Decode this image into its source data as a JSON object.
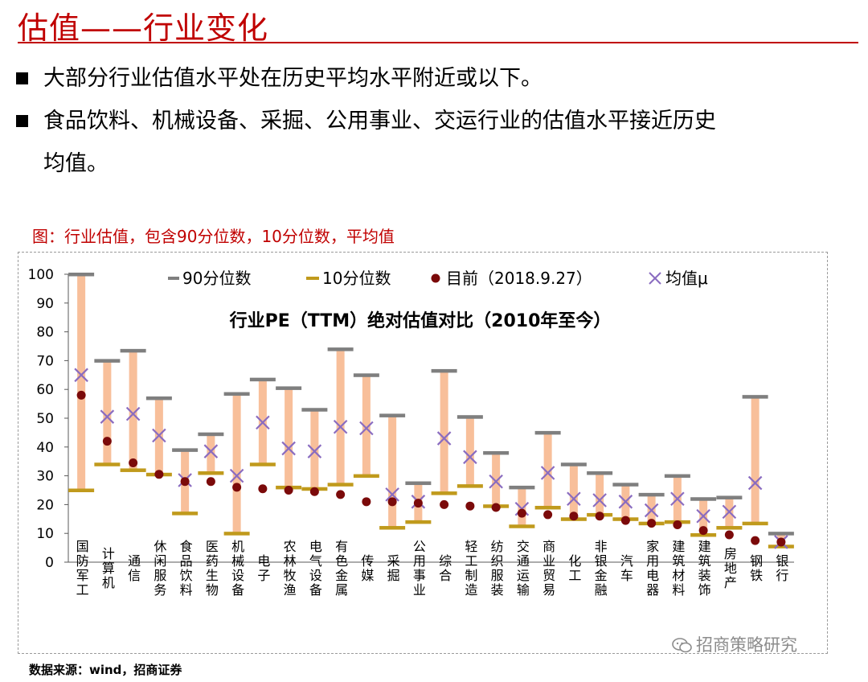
{
  "page": {
    "title": "估值——行业变化",
    "bullets": [
      "大部分行业估值水平处在历史平均水平附近或以下。",
      "食品饮料、机械设备、采掘、公用事业、交运行业的估值水平接近历史",
      "均值。"
    ],
    "figure_caption": "图：行业估值，包含90分位数，10分位数，平均值",
    "source": "数据来源：wind，招商证券",
    "watermark": "招商策略研究"
  },
  "colors": {
    "accent_red": "#c00000",
    "range_bar": "#f8bf9a",
    "p90_marker": "#7f7f7f",
    "p10_marker": "#c09a1c",
    "current_dot": "#7b0a0a",
    "mean_marker": "#8a6cc0"
  },
  "chart_data": {
    "type": "range",
    "title": "行业PE（TTM）绝对估值对比（2010年至今）",
    "ylim": [
      0,
      100
    ],
    "yticks": [
      0,
      10,
      20,
      30,
      40,
      50,
      60,
      70,
      80,
      90,
      100
    ],
    "legend_position": "top",
    "legend": {
      "p90": "90分位数",
      "p10": "10分位数",
      "current": "目前（2018.9.27）",
      "mean": "均值μ"
    },
    "categories": [
      "国防军工",
      "计算机",
      "通信",
      "休闲服务",
      "食品饮料",
      "医药生物",
      "机械设备",
      "电子",
      "农林牧渔",
      "电气设备",
      "有色金属",
      "传媒",
      "采掘",
      "公用事业",
      "综合",
      "轻工制造",
      "纺织服装",
      "交通运输",
      "商业贸易",
      "化工",
      "非银金融",
      "汽车",
      "家用电器",
      "建筑材料",
      "建筑装饰",
      "房地产",
      "钢铁",
      "银行"
    ],
    "series": [
      {
        "name": "90分位数",
        "values": [
          102,
          70,
          73.5,
          57,
          39,
          44.5,
          58.5,
          63.5,
          60.5,
          53,
          74,
          65,
          51,
          27.5,
          66.5,
          50.5,
          38,
          26,
          45,
          34,
          31,
          27,
          23.5,
          30,
          22,
          22.5,
          57.5,
          10
        ]
      },
      {
        "name": "10分位数",
        "values": [
          25,
          34,
          32,
          30.5,
          17,
          31,
          10,
          34,
          26,
          25.5,
          27,
          30,
          12,
          14,
          24,
          26.5,
          19.5,
          12.5,
          19,
          15,
          16.5,
          15,
          13.5,
          14,
          9.5,
          12,
          13.5,
          5.5
        ]
      },
      {
        "name": "目前（2018.9.27）",
        "values": [
          58,
          42,
          34.5,
          30.5,
          28,
          28,
          26,
          25.5,
          25,
          24.5,
          23.5,
          21,
          21,
          20.5,
          20,
          19.5,
          19,
          17,
          16.5,
          16,
          16,
          14.5,
          13.5,
          13,
          11,
          9.5,
          7.5,
          7
        ]
      },
      {
        "name": "均值μ",
        "values": [
          65,
          50.5,
          51.5,
          44,
          28.5,
          38.5,
          30,
          48.5,
          39.5,
          38.5,
          47,
          46.5,
          23.5,
          21,
          43,
          36.5,
          28,
          18.5,
          31,
          22,
          21.5,
          21,
          18,
          22,
          16,
          17.5,
          27.5,
          7
        ]
      }
    ]
  }
}
